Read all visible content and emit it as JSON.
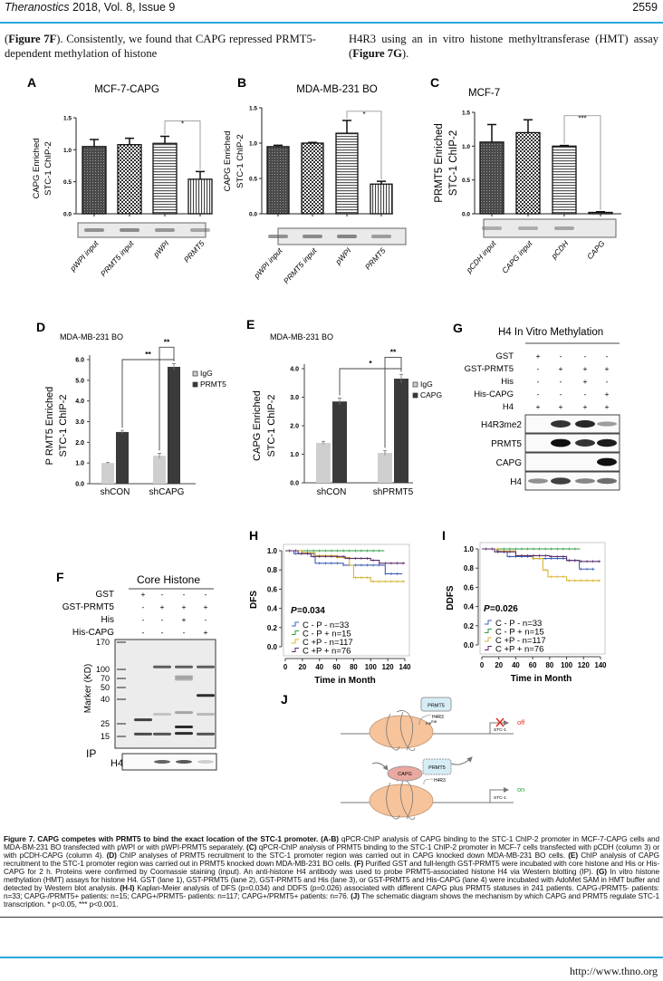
{
  "header": {
    "journal": "Theranostics",
    "issue": "2018, Vol. 8, Issue 9",
    "page_number": "2559",
    "accent_color": "#29a8df"
  },
  "body_text": {
    "col1": [
      {
        "b": false,
        "t": "("
      },
      {
        "b": true,
        "t": "Figure 7F"
      },
      {
        "b": false,
        "t": "). Consistently, we found that CAPG repressed PRMT5-dependent methylation of histone"
      }
    ],
    "col2": [
      {
        "b": false,
        "t": "H4R3 using an in vitro histone methyltransferase (HMT) assay ("
      },
      {
        "b": true,
        "t": "Figure 7G"
      },
      {
        "b": false,
        "t": ")."
      }
    ]
  },
  "figure": {
    "panels_abc": [
      {
        "letter": "A",
        "title": "MCF-7-CAPG",
        "ylabel": [
          "CAPG Enriched",
          "STC-1 ChIP-2"
        ],
        "ylim": [
          0,
          1.5
        ],
        "yticks": [
          0,
          0.5,
          1.0,
          1.5
        ],
        "ytick_labels": [
          "0.0",
          "0.5",
          "1.0",
          "1.5"
        ],
        "categories": [
          "pWPI input",
          "PRMT5 input",
          "pWPI",
          "PRMT5"
        ],
        "values": [
          1.05,
          1.08,
          1.1,
          0.54
        ],
        "errors": [
          0.11,
          0.1,
          0.11,
          0.12
        ],
        "sig": {
          "from": 2,
          "to": 3,
          "text": "*"
        },
        "gel_bands": [
          0.8,
          0.85,
          0.75,
          0.6
        ]
      },
      {
        "letter": "B",
        "title": "MDA-MB-231 BO",
        "ylabel": [
          "CAPG Enriched",
          "STC-1 ChIP-2"
        ],
        "ylim": [
          0,
          1.5
        ],
        "yticks": [
          0,
          0.5,
          1.0,
          1.5
        ],
        "ytick_labels": [
          "0.0",
          "0.5",
          "1.0",
          "1.5"
        ],
        "categories": [
          "pWPI input",
          "PRMT5 input",
          "pWPI",
          "PRMT5"
        ],
        "values": [
          0.95,
          1.0,
          1.14,
          0.42
        ],
        "errors": [
          0.02,
          0.01,
          0.18,
          0.04
        ],
        "sig": {
          "from": 2,
          "to": 3,
          "text": "*"
        },
        "gel_bands": [
          0.8,
          0.85,
          0.9,
          0.7
        ]
      },
      {
        "letter": "C",
        "title": "MCF-7",
        "ylabel": [
          "PRMT5 Enriched",
          "STC-1 ChIP-2"
        ],
        "ylim": [
          0,
          1.5
        ],
        "yticks": [
          0,
          0.5,
          1.0,
          1.5
        ],
        "ytick_labels": [
          "0.0",
          "0.5",
          "1.0",
          "1.5"
        ],
        "categories": [
          "pCDH input",
          "CAPG input",
          "pCDH",
          "CAPG"
        ],
        "values": [
          1.06,
          1.2,
          1.0,
          0.02
        ],
        "errors": [
          0.26,
          0.19,
          0.01,
          0.01
        ],
        "sig": {
          "from": 2,
          "to": 3,
          "text": "***"
        },
        "gel_bands": [
          0.55,
          0.55,
          0.6,
          0.0
        ]
      }
    ],
    "panels_de": [
      {
        "letter": "D",
        "title": "MDA-MB-231 BO",
        "ylabel": [
          "P RMT5 Enriched",
          "STC-1 ChIP-2"
        ],
        "ylim": [
          0,
          6
        ],
        "yticks": [
          0,
          1,
          2,
          3,
          4,
          5,
          6
        ],
        "ytick_labels": [
          "0.0",
          "1.0",
          "2.0",
          "3.0",
          "4.0",
          "5.0",
          "6.0"
        ],
        "categories": [
          "shCON",
          "shCAPG"
        ],
        "series": [
          {
            "name": "IgG",
            "values": [
              1.0,
              1.35
            ],
            "errors": [
              0.03,
              0.12
            ],
            "color": "#cfcfcf"
          },
          {
            "name": "PRMT5",
            "values": [
              2.5,
              5.65
            ],
            "errors": [
              0.08,
              0.15
            ],
            "color": "#3a3a3a"
          }
        ],
        "sig": [
          {
            "from": [
              0,
              1
            ],
            "to": [
              1,
              1
            ],
            "level": 6.0,
            "text": "**"
          },
          {
            "from": [
              1,
              0
            ],
            "to": [
              1,
              1
            ],
            "level": 6.6,
            "text": "**"
          }
        ]
      },
      {
        "letter": "E",
        "title": "MDA-MB-231 BO",
        "ylabel": [
          "CAPG Enriched",
          "STC-1 ChIP-2"
        ],
        "ylim": [
          0,
          4
        ],
        "yticks": [
          0,
          1,
          2,
          3,
          4
        ],
        "ytick_labels": [
          "0.0",
          "1.0",
          "2.0",
          "3.0",
          "4.0"
        ],
        "categories": [
          "shCON",
          "shPRMT5"
        ],
        "series": [
          {
            "name": "IgG",
            "values": [
              1.4,
              1.05
            ],
            "errors": [
              0.05,
              0.08
            ],
            "color": "#cfcfcf"
          },
          {
            "name": "CAPG",
            "values": [
              2.85,
              3.65
            ],
            "errors": [
              0.12,
              0.15
            ],
            "color": "#3a3a3a"
          }
        ],
        "sig": [
          {
            "from": [
              0,
              1
            ],
            "to": [
              1,
              1
            ],
            "level": 4.0,
            "text": "*"
          },
          {
            "from": [
              1,
              0
            ],
            "to": [
              1,
              1
            ],
            "level": 4.4,
            "text": "**"
          }
        ]
      }
    ],
    "panel_g": {
      "letter": "G",
      "title": "H4 In Vitro Methylation",
      "conditions": [
        {
          "label": "GST",
          "lanes": [
            "+",
            "-",
            "-",
            "-"
          ]
        },
        {
          "label": "GST-PRMT5",
          "lanes": [
            "-",
            "+",
            "+",
            "+"
          ]
        },
        {
          "label": "His",
          "lanes": [
            "-",
            "-",
            "+",
            "-"
          ]
        },
        {
          "label": "His-CAPG",
          "lanes": [
            "-",
            "-",
            "-",
            "+"
          ]
        },
        {
          "label": "H4",
          "lanes": [
            "+",
            "+",
            "+",
            "+"
          ]
        }
      ],
      "blots": [
        {
          "label": "H4R3me2",
          "bands": [
            0,
            0.85,
            0.9,
            0.4
          ]
        },
        {
          "label": "PRMT5",
          "bands": [
            0,
            1,
            0.85,
            0.95
          ]
        },
        {
          "label": "CAPG",
          "bands": [
            0,
            0,
            0,
            1
          ]
        },
        {
          "label": "H4",
          "bands": [
            0.45,
            0.8,
            0.5,
            0.6
          ]
        }
      ]
    },
    "panel_f": {
      "letter": "F",
      "title": "Core Histone",
      "conditions": [
        {
          "label": "GST",
          "lanes": [
            "+",
            "-",
            "-",
            "-"
          ]
        },
        {
          "label": "GST-PRMT5",
          "lanes": [
            "-",
            "+",
            "+",
            "+"
          ]
        },
        {
          "label": "His",
          "lanes": [
            "-",
            "-",
            "+",
            "-"
          ]
        },
        {
          "label": "His-CAPG",
          "lanes": [
            "-",
            "-",
            "-",
            "+"
          ]
        }
      ],
      "marker_label": "Marker (KD)",
      "markers": [
        {
          "kd": 170,
          "label": "170"
        },
        {
          "kd": 100,
          "label": "100"
        },
        {
          "kd": 70,
          "label": "70"
        },
        {
          "kd": 50,
          "label": "50"
        },
        {
          "kd": 40,
          "label": "40"
        },
        {
          "kd": 25,
          "label": "25"
        },
        {
          "kd": 15,
          "label": "15"
        }
      ],
      "gel_bands": [
        {
          "lane": 1,
          "kd": 27,
          "i": 0.85
        },
        {
          "lane": 1,
          "kd": 16.5,
          "i": 0.8
        },
        {
          "lane": 2,
          "kd": 105,
          "i": 0.7
        },
        {
          "lane": 2,
          "kd": 16.5,
          "i": 0.75
        },
        {
          "lane": 2,
          "kd": 30,
          "i": 0.2
        },
        {
          "lane": 3,
          "kd": 105,
          "i": 0.7
        },
        {
          "lane": 3,
          "kd": 75,
          "i": 0.35
        },
        {
          "lane": 3,
          "kd": 68,
          "i": 0.3
        },
        {
          "lane": 3,
          "kd": 31,
          "i": 0.35
        },
        {
          "lane": 3,
          "kd": 22,
          "i": 0.95
        },
        {
          "lane": 3,
          "kd": 17,
          "i": 0.95
        },
        {
          "lane": 4,
          "kd": 105,
          "i": 0.7
        },
        {
          "lane": 4,
          "kd": 43,
          "i": 0.95
        },
        {
          "lane": 4,
          "kd": 30,
          "i": 0.25
        },
        {
          "lane": 4,
          "kd": 16.5,
          "i": 0.75
        }
      ],
      "ip_label": "IP",
      "ip_blot_label": "H4",
      "ip_bands": [
        0,
        0.7,
        0.75,
        0.2
      ]
    },
    "km": [
      {
        "letter": "H",
        "ylabel": "DFS",
        "xlabel": "Time in Month",
        "p_label": "P",
        "p_value": "=0.034",
        "yticks": [
          "0.0",
          "0.2",
          "0.4",
          "0.6",
          "0.8",
          "1.0"
        ],
        "xticks": [
          "0",
          "20",
          "40",
          "60",
          "80",
          "100",
          "120",
          "140"
        ],
        "series": [
          {
            "name": "C - P -  n=33",
            "color": "#3e5fb8",
            "steps": [
              [
                0,
                1
              ],
              [
                10,
                0.97
              ],
              [
                35,
                0.87
              ],
              [
                68,
                0.85
              ],
              [
                117,
                0.76
              ]
            ],
            "end": 137
          },
          {
            "name": "C - P + n=15",
            "color": "#2e9e42",
            "steps": [
              [
                0,
                1
              ]
            ],
            "end": 116
          },
          {
            "name": "C +P -  n=117",
            "color": "#d8b530",
            "steps": [
              [
                0,
                1
              ],
              [
                20,
                0.98
              ],
              [
                35,
                0.95
              ],
              [
                60,
                0.93
              ],
              [
                75,
                0.85
              ],
              [
                80,
                0.72
              ],
              [
                100,
                0.68
              ]
            ],
            "end": 140
          },
          {
            "name": "C +P + n=76",
            "color": "#5b2d6e",
            "steps": [
              [
                0,
                1
              ],
              [
                15,
                0.97
              ],
              [
                30,
                0.94
              ],
              [
                70,
                0.92
              ],
              [
                100,
                0.9
              ],
              [
                110,
                0.87
              ]
            ],
            "end": 140
          }
        ]
      },
      {
        "letter": "I",
        "ylabel": "DDFS",
        "xlabel": "Time in Month",
        "p_label": "P",
        "p_value": "=0.026",
        "yticks": [
          "0.0",
          "0.2",
          "0.4",
          "0.6",
          "0.8",
          "1.0"
        ],
        "xticks": [
          "0",
          "20",
          "40",
          "60",
          "80",
          "100",
          "120",
          "140"
        ],
        "series": [
          {
            "name": "C - P -  n=33",
            "color": "#3e5fb8",
            "steps": [
              [
                0,
                1
              ],
              [
                18,
                0.97
              ],
              [
                30,
                0.92
              ],
              [
                60,
                0.9
              ],
              [
                100,
                0.88
              ],
              [
                115,
                0.79
              ]
            ],
            "end": 133
          },
          {
            "name": "C - P + n=15",
            "color": "#2e9e42",
            "steps": [
              [
                0,
                1
              ]
            ],
            "end": 116
          },
          {
            "name": "C +P -  n=117",
            "color": "#d8b530",
            "steps": [
              [
                0,
                1
              ],
              [
                20,
                0.98
              ],
              [
                40,
                0.93
              ],
              [
                60,
                0.9
              ],
              [
                72,
                0.78
              ],
              [
                78,
                0.71
              ],
              [
                100,
                0.67
              ]
            ],
            "end": 140
          },
          {
            "name": "C +P + n=76",
            "color": "#5b2d6e",
            "steps": [
              [
                0,
                1
              ],
              [
                15,
                0.97
              ],
              [
                40,
                0.93
              ],
              [
                80,
                0.92
              ],
              [
                100,
                0.88
              ],
              [
                115,
                0.87
              ]
            ],
            "end": 140
          }
        ]
      }
    ],
    "panel_j": {
      "letter": "J",
      "top": {
        "protein": "PRMT5",
        "site": "H4R3",
        "me1": "me",
        "me2": "me",
        "gene": "STC-1",
        "state": "off"
      },
      "bottom": {
        "competitor": "CAPG",
        "protein": "PRMT5",
        "site": "H4R3",
        "gene": "STC-1",
        "state": "on"
      },
      "off_color": "#e0302a",
      "on_color": "#2aa43c"
    }
  },
  "caption": [
    {
      "b": true,
      "t": "Figure 7. CAPG competes with PRMT5 to bind the exact location of the STC-1 promoter. "
    },
    {
      "b": true,
      "t": "(A-B)"
    },
    {
      "b": false,
      "t": " qPCR-ChIP analysis of CAPG binding to the STC-1 ChIP-2 promoter in MCF-7-CAPG cells and MDA-BM-231 BO transfected with pWPI or with pWPI-PRMT5 separately. "
    },
    {
      "b": true,
      "t": "(C)"
    },
    {
      "b": false,
      "t": " qPCR-ChIP analysis of PRMT5 binding to the STC-1 ChIP-2 promoter in MCF-7 cells transfected with pCDH (column 3) or with pCDH-CAPG (column 4). "
    },
    {
      "b": true,
      "t": "(D)"
    },
    {
      "b": false,
      "t": " ChIP analyses of PRMT5 recruitment to the STC-1 promoter region was carried out in CAPG knocked down MDA-MB-231 BO cells. "
    },
    {
      "b": true,
      "t": "(E)"
    },
    {
      "b": false,
      "t": " ChIP analysis of CAPG recruitment to the STC-1 promoter region was carried out in PRMT5 knocked down MDA-MB-231 BO cells. "
    },
    {
      "b": true,
      "t": "(F)"
    },
    {
      "b": false,
      "t": " Purified GST and full-length GST-PRMT5 were incubated with core histone and His or His-CAPG for 2 h. Proteins were confirmed by Coomassie staining (input). An anti-histone H4 antibody was used to probe PRMT5-associated histone H4 via Western blotting (IP). "
    },
    {
      "b": true,
      "t": "(G)"
    },
    {
      "b": false,
      "t": " In vitro histone methylation (HMT) assays for histone H4. GST (lane 1), GST-PRMT5 (lane 2), GST-PRMT5 and His (lane 3), or GST-PRMT5 and His-CAPG (lane 4) were incubated with AdoMet SAM in HMT buffer and detected by Western blot analysis. "
    },
    {
      "b": true,
      "t": "(H-I)"
    },
    {
      "b": false,
      "t": " Kaplan-Meier analysis of DFS (p=0.034) and DDFS (p=0.026) associated with different CAPG plus PRMT5 statuses in 241 patients. CAPG-/PRMT5- patients: n=33; CAPG-/PRMT5+ patients: n=15; CAPG+/PRMT5- patients: n=117; CAPG+/PRMT5+ patients: n=76. "
    },
    {
      "b": true,
      "t": "(J)"
    },
    {
      "b": false,
      "t": " The schematic diagram shows the mechanism by which CAPG and PRMT5 regulate STC-1 transcription. * p<0.05, *** p<0.001."
    }
  ],
  "footer": {
    "url": "http://www.thno.org"
  }
}
